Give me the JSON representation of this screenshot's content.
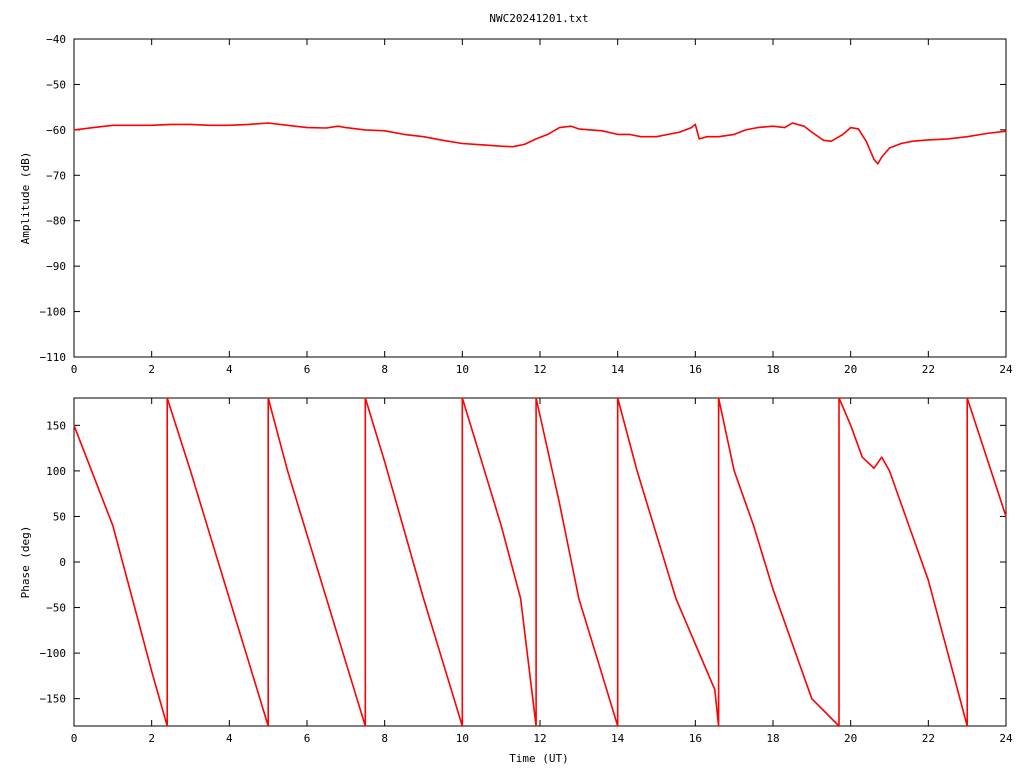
{
  "chart_data": {
    "title": "NWC20241201.txt",
    "panels": [
      {
        "id": "amplitude",
        "type": "line",
        "ylabel": "Amplitude (dB)",
        "xlabel": "",
        "xlim": [
          0,
          24
        ],
        "ylim": [
          -110,
          -40
        ],
        "xticks": [
          0,
          2,
          4,
          6,
          8,
          10,
          12,
          14,
          16,
          18,
          20,
          22,
          24
        ],
        "yticks": [
          -40,
          -50,
          -60,
          -70,
          -80,
          -90,
          -100,
          -110
        ],
        "series_color": "#ff0000",
        "series": [
          {
            "x": [
              0,
              0.5,
              1,
              1.5,
              2,
              2.5,
              3,
              3.5,
              4,
              4.5,
              5,
              5.5,
              6,
              6.5,
              6.8,
              7,
              7.5,
              8,
              8.5,
              9,
              9.5,
              10,
              10.5,
              11,
              11.3,
              11.6,
              11.9,
              12.2,
              12.5,
              12.8,
              13,
              13.3,
              13.6,
              14,
              14.3,
              14.6,
              15,
              15.3,
              15.6,
              15.9,
              16,
              16.1,
              16.3,
              16.6,
              17,
              17.3,
              17.6,
              18,
              18.3,
              18.5,
              18.8,
              19,
              19.3,
              19.5,
              19.8,
              20,
              20.2,
              20.4,
              20.6,
              20.7,
              20.8,
              21,
              21.3,
              21.6,
              22,
              22.5,
              23,
              23.5,
              24
            ],
            "y": [
              -60,
              -59.5,
              -59,
              -59,
              -59,
              -58.8,
              -58.8,
              -59,
              -59,
              -58.8,
              -58.5,
              -59,
              -59.5,
              -59.6,
              -59.2,
              -59.5,
              -60,
              -60.2,
              -61,
              -61.5,
              -62.3,
              -63,
              -63.3,
              -63.6,
              -63.7,
              -63.2,
              -62,
              -61,
              -59.5,
              -59.2,
              -59.8,
              -60,
              -60.2,
              -61,
              -61,
              -61.5,
              -61.5,
              -61,
              -60.5,
              -59.5,
              -58.8,
              -62,
              -61.5,
              -61.5,
              -61,
              -60,
              -59.5,
              -59.2,
              -59.5,
              -58.5,
              -59.2,
              -60.5,
              -62.3,
              -62.5,
              -61,
              -59.5,
              -59.8,
              -62.5,
              -66.5,
              -67.5,
              -66,
              -64,
              -63,
              -62.5,
              -62.2,
              -62,
              -61.5,
              -60.8,
              -60.3
            ]
          }
        ]
      },
      {
        "id": "phase",
        "type": "line",
        "ylabel": "Phase (deg)",
        "xlabel": "Time (UT)",
        "xlim": [
          0,
          24
        ],
        "ylim": [
          -180,
          180
        ],
        "xticks": [
          0,
          2,
          4,
          6,
          8,
          10,
          12,
          14,
          16,
          18,
          20,
          22,
          24
        ],
        "yticks": [
          150,
          100,
          50,
          0,
          -50,
          -100,
          -150
        ],
        "series_color": "#ff0000",
        "series": [
          {
            "x": [
              0,
              0.5,
              1,
              1.5,
              2,
              2.4,
              2.4,
              3,
              3.5,
              4,
              4.5,
              5,
              5,
              5.5,
              6,
              6.5,
              7,
              7.5,
              7.5,
              8,
              8.5,
              9,
              9.5,
              10,
              10,
              10.5,
              11,
              11.5,
              11.9,
              11.9,
              12.5,
              13,
              13.5,
              14,
              14,
              14.5,
              15,
              15.5,
              16,
              16.5,
              16.6,
              16.6,
              17,
              17.5,
              18,
              18.5,
              19,
              19.7,
              19.7,
              20,
              20.3,
              20.6,
              20.8,
              21,
              21.5,
              22,
              22.5,
              23,
              23,
              23.5,
              24
            ],
            "y": [
              150,
              95,
              40,
              -40,
              -120,
              -180,
              180,
              100,
              30,
              -40,
              -110,
              -180,
              180,
              100,
              30,
              -40,
              -110,
              -180,
              180,
              110,
              35,
              -40,
              -110,
              -180,
              180,
              110,
              40,
              -40,
              -180,
              180,
              65,
              -40,
              -110,
              -180,
              180,
              100,
              30,
              -40,
              -90,
              -140,
              -180,
              180,
              100,
              40,
              -30,
              -90,
              -150,
              -180,
              180,
              150,
              115,
              103,
              115,
              100,
              40,
              -20,
              -100,
              -180,
              180,
              115,
              50
            ]
          }
        ]
      }
    ]
  }
}
